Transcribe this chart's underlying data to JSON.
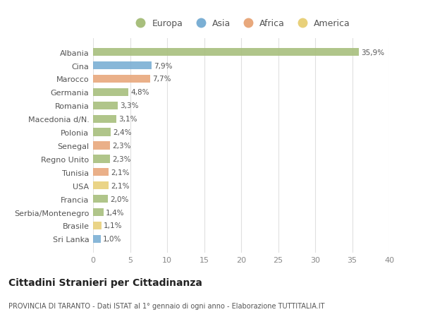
{
  "categories": [
    "Albania",
    "Cina",
    "Marocco",
    "Germania",
    "Romania",
    "Macedonia d/N.",
    "Polonia",
    "Senegal",
    "Regno Unito",
    "Tunisia",
    "USA",
    "Francia",
    "Serbia/Montenegro",
    "Brasile",
    "Sri Lanka"
  ],
  "values": [
    35.9,
    7.9,
    7.7,
    4.8,
    3.3,
    3.1,
    2.4,
    2.3,
    2.3,
    2.1,
    2.1,
    2.0,
    1.4,
    1.1,
    1.0
  ],
  "labels": [
    "35,9%",
    "7,9%",
    "7,7%",
    "4,8%",
    "3,3%",
    "3,1%",
    "2,4%",
    "2,3%",
    "2,3%",
    "2,1%",
    "2,1%",
    "2,0%",
    "1,4%",
    "1,1%",
    "1,0%"
  ],
  "continents": [
    "Europa",
    "Asia",
    "Africa",
    "Europa",
    "Europa",
    "Europa",
    "Europa",
    "Africa",
    "Europa",
    "Africa",
    "America",
    "Europa",
    "Europa",
    "America",
    "Asia"
  ],
  "continent_colors": {
    "Europa": "#a8bf7d",
    "Asia": "#7bafd4",
    "Africa": "#e8a87c",
    "America": "#e8d07a"
  },
  "legend_entries": [
    "Europa",
    "Asia",
    "Africa",
    "America"
  ],
  "title": "Cittadini Stranieri per Cittadinanza",
  "subtitle": "PROVINCIA DI TARANTO - Dati ISTAT al 1° gennaio di ogni anno - Elaborazione TUTTITALIA.IT",
  "xlim": [
    0,
    40
  ],
  "xticks": [
    0,
    5,
    10,
    15,
    20,
    25,
    30,
    35,
    40
  ],
  "background_color": "#ffffff",
  "grid_color": "#e0e0e0",
  "bar_height": 0.6,
  "figsize": [
    6.0,
    4.6
  ],
  "dpi": 100
}
